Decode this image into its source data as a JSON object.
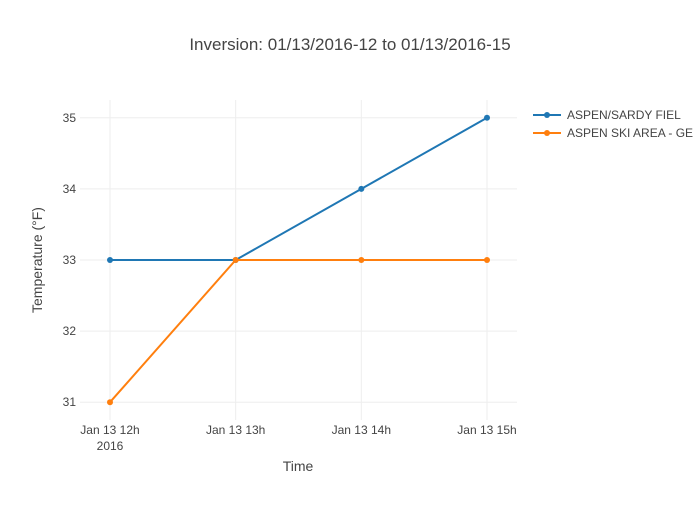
{
  "chart_data": {
    "type": "line",
    "title": "Inversion: 01/13/2016-12 to 01/13/2016-15",
    "xlabel": "Time",
    "ylabel": "Temperature (°F)",
    "x": [
      "Jan 13 12h",
      "Jan 13 13h",
      "Jan 13 14h",
      "Jan 13 15h"
    ],
    "x_tick_sublabels": [
      "2016",
      "",
      "",
      ""
    ],
    "yticks": [
      31,
      32,
      33,
      34,
      35
    ],
    "ylim": [
      30.75,
      35.25
    ],
    "grid": true,
    "legend_position": "top-right",
    "series": [
      {
        "name": "ASPEN/SARDY FIEL",
        "color": "#1f77b4",
        "values": [
          33,
          33,
          34,
          35
        ]
      },
      {
        "name": "ASPEN SKI AREA - GE",
        "color": "#ff7f0e",
        "values": [
          31,
          33,
          33,
          33
        ]
      }
    ]
  }
}
